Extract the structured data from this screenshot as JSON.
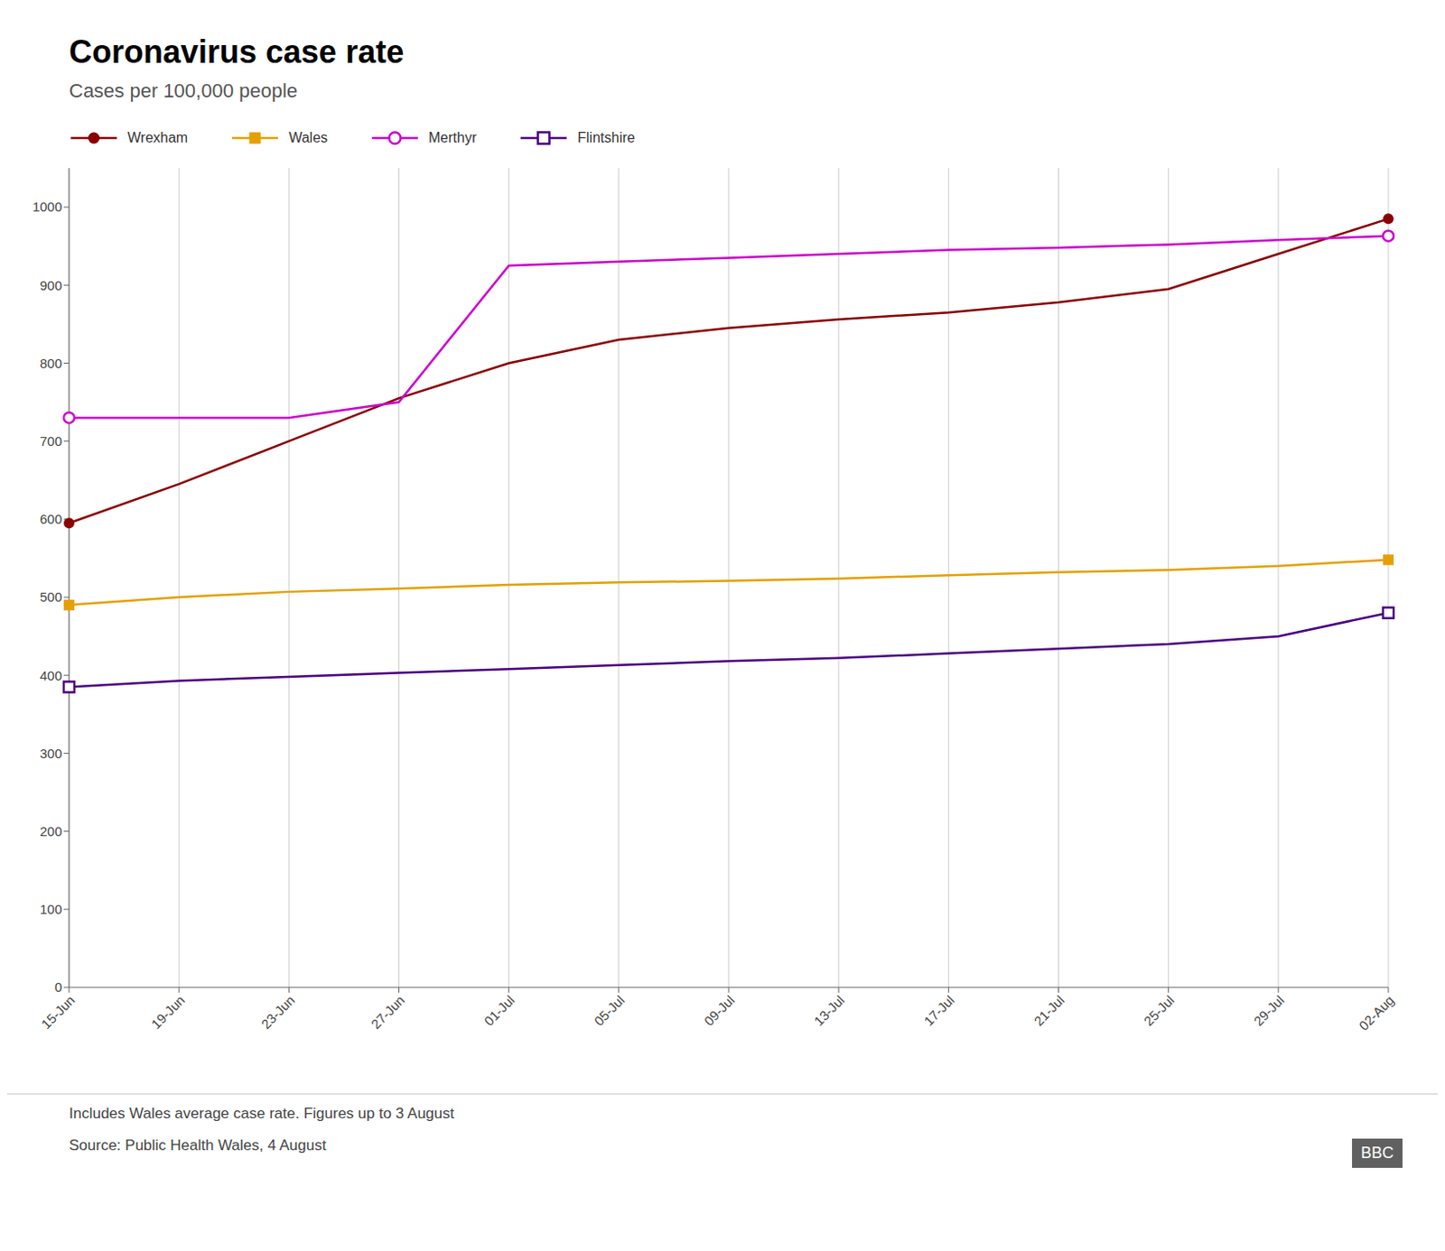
{
  "chart_data": {
    "type": "line",
    "title": "Coronavirus case rate",
    "subtitle": "Cases per 100,000 people",
    "annotations": [
      "Includes Wales average case rate. Figures up to 3 August",
      "Source: Public Health Wales, 4 August",
      "BBC"
    ],
    "categories": [
      "15-Jun",
      "19-Jun",
      "23-Jun",
      "27-Jun",
      "01-Jul",
      "05-Jul",
      "09-Jul",
      "13-Jul",
      "17-Jul",
      "21-Jul",
      "25-Jul",
      "29-Jul",
      "02-Aug"
    ],
    "series": [
      {
        "name": "Wrexham",
        "color": "#8B0000",
        "marker": "circle",
        "values": [
          595,
          645,
          700,
          755,
          800,
          830,
          845,
          856,
          865,
          878,
          895,
          940,
          985
        ]
      },
      {
        "name": "Wales",
        "color": "#E5A000",
        "marker": "square",
        "values": [
          490,
          500,
          507,
          511,
          516,
          519,
          521,
          524,
          528,
          532,
          535,
          540,
          548
        ]
      },
      {
        "name": "Merthyr",
        "color": "#CC00CC",
        "marker": "open circle",
        "values": [
          730,
          730,
          730,
          750,
          925,
          930,
          935,
          940,
          945,
          948,
          952,
          958,
          963
        ]
      },
      {
        "name": "Flintshire",
        "color": "#4B0082",
        "marker": "open square",
        "values": [
          385,
          393,
          398,
          403,
          408,
          413,
          418,
          422,
          428,
          434,
          440,
          450,
          480
        ]
      }
    ],
    "ylim": [
      0,
      1050
    ],
    "yticks": [
      0,
      100,
      200,
      300,
      400,
      500,
      600,
      700,
      800,
      900,
      1000
    ],
    "grid": true,
    "legend": "top left"
  }
}
